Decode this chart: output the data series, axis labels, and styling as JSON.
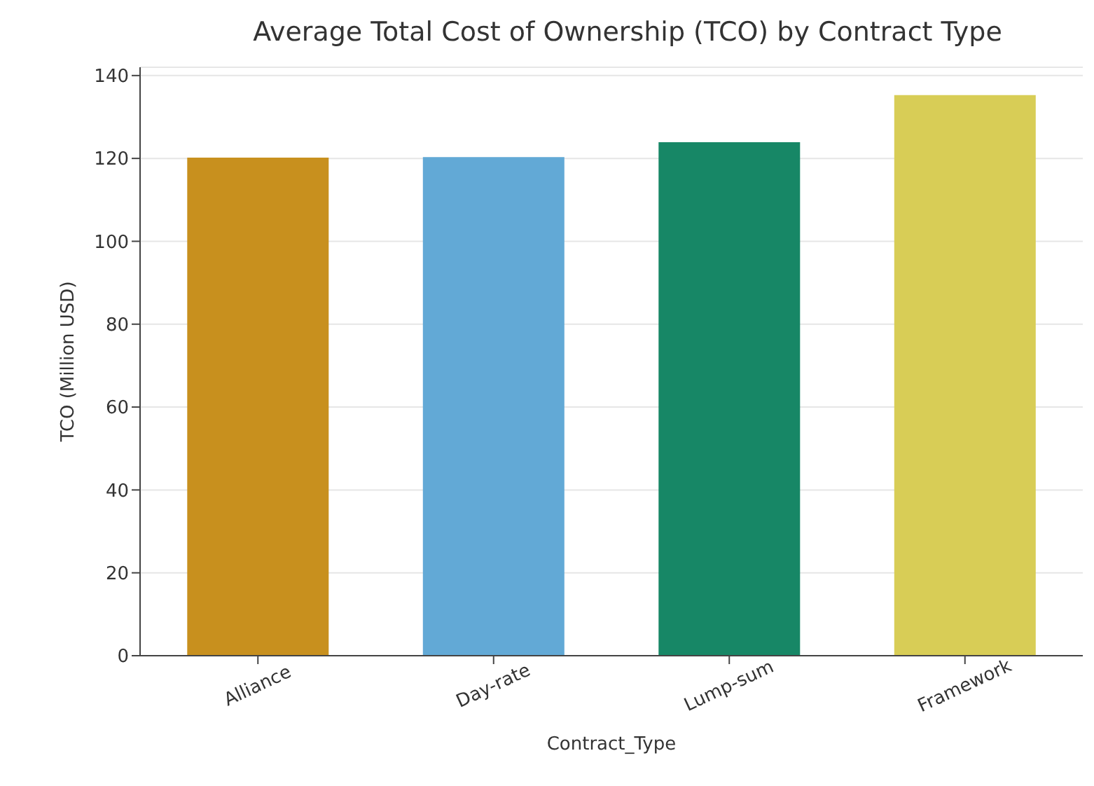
{
  "chart_data": {
    "type": "bar",
    "title": "Average Total Cost of Ownership (TCO) by Contract Type",
    "xlabel": "Contract_Type",
    "ylabel": "TCO (Million USD)",
    "categories": [
      "Alliance",
      "Day-rate",
      "Lump-sum",
      "Framework"
    ],
    "values": [
      120.2,
      120.3,
      123.9,
      135.3
    ],
    "colors": [
      "#c8901e",
      "#62a9d6",
      "#178766",
      "#d8cd56"
    ],
    "ylim": [
      0,
      142
    ],
    "yticks": [
      0,
      20,
      40,
      60,
      80,
      100,
      120,
      140
    ],
    "grid": "y"
  }
}
